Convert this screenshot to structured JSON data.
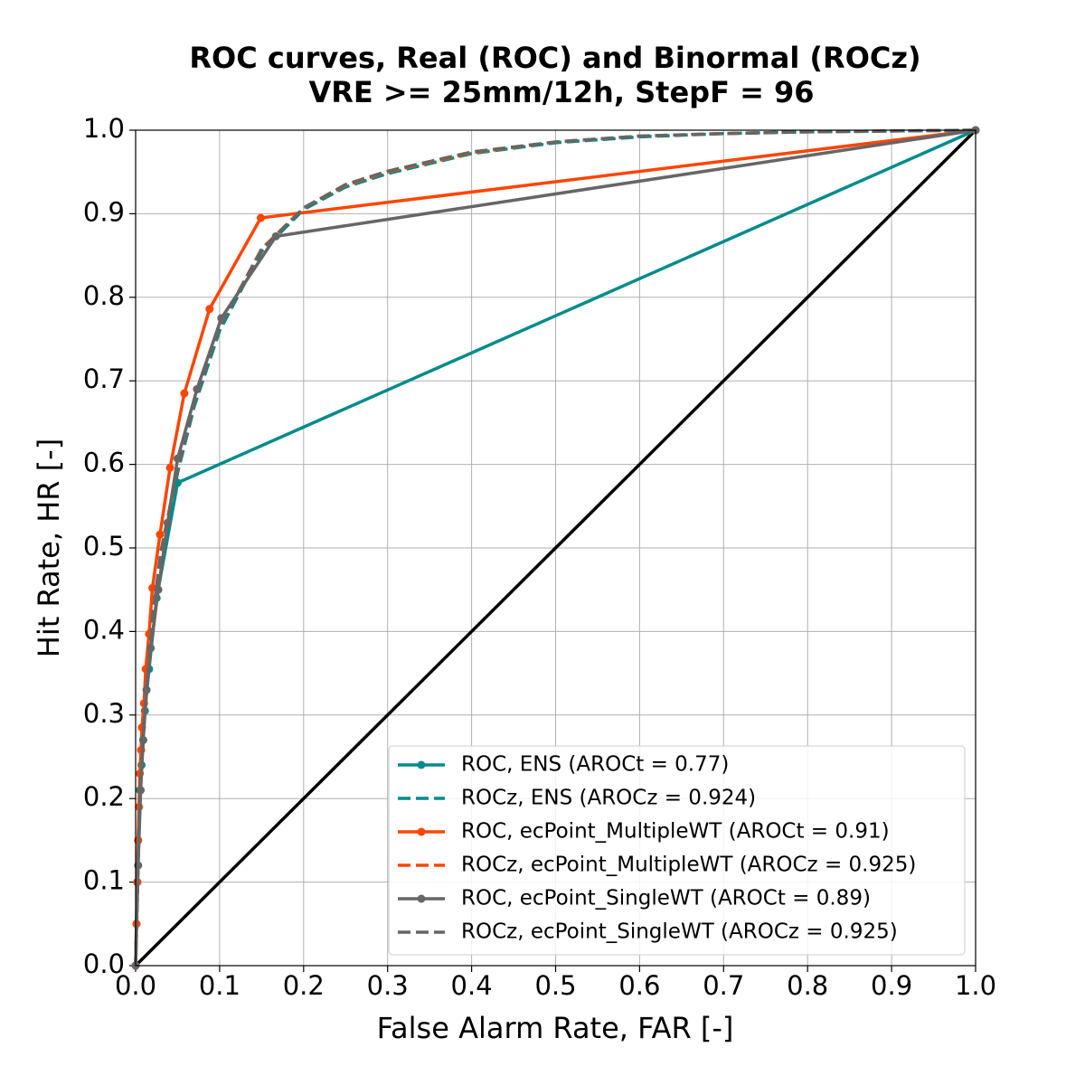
{
  "chart_data": {
    "type": "line",
    "title": "ROC curves, Real (ROC) and Binormal (ROCz)",
    "subtitle": "VRE >= 25mm/12h, StepF = 96",
    "x_label": "False Alarm Rate, FAR [-]",
    "y_label": "Hit Rate, HR [-]",
    "xlim": [
      0,
      1
    ],
    "ylim": [
      0,
      1
    ],
    "xticks": [
      {
        "value": 0,
        "label": "0.0"
      },
      0.1,
      0.2,
      0.3,
      0.4,
      0.5,
      0.6,
      0.7,
      0.8,
      0.9,
      {
        "value": 1,
        "label": "1.0"
      }
    ],
    "yticks": [
      {
        "value": 0,
        "label": "0.0"
      },
      0.1,
      0.2,
      0.3,
      0.4,
      0.5,
      0.6,
      0.7,
      0.8,
      0.9,
      {
        "value": 1,
        "label": "1.0"
      }
    ],
    "grid": true,
    "legend": "lower right",
    "series": [
      {
        "name": "ROC, ENS (AROCt = 0.77)",
        "color": "#008b8b",
        "linestyle": "solid",
        "marker": true,
        "x": [
          0,
          0.001,
          0.002,
          0.003,
          0.005,
          0.007,
          0.009,
          0.011,
          0.016,
          0.025,
          0.05,
          1
        ],
        "values": [
          0,
          0.05,
          0.1,
          0.15,
          0.21,
          0.24,
          0.27,
          0.305,
          0.355,
          0.44,
          0.578,
          1
        ]
      },
      {
        "name": "ROCz, ENS (AROCz = 0.924)",
        "color": "#008b8b",
        "linestyle": "dashed",
        "marker": false,
        "x": [
          0,
          0.005,
          0.01,
          0.02,
          0.03,
          0.05,
          0.07,
          0.1,
          0.15,
          0.2,
          0.25,
          0.3,
          0.4,
          0.5,
          0.6,
          0.7,
          0.8,
          0.9,
          1
        ],
        "values": [
          0,
          0.2,
          0.29,
          0.41,
          0.49,
          0.59,
          0.67,
          0.76,
          0.855,
          0.905,
          0.932,
          0.948,
          0.972,
          0.985,
          0.992,
          0.996,
          0.998,
          0.999,
          1
        ]
      },
      {
        "name": "ROC, ecPoint_MultipleWT (AROCt = 0.91)",
        "color": "#ff4500",
        "linestyle": "solid",
        "marker": true,
        "x": [
          0,
          0.001,
          0.002,
          0.003,
          0.004,
          0.005,
          0.0065,
          0.0075,
          0.01,
          0.012,
          0.016,
          0.02,
          0.029,
          0.041,
          0.058,
          0.088,
          0.149,
          1
        ],
        "values": [
          0,
          0.05,
          0.1,
          0.15,
          0.19,
          0.23,
          0.258,
          0.285,
          0.314,
          0.355,
          0.397,
          0.452,
          0.516,
          0.596,
          0.685,
          0.786,
          0.895,
          1
        ]
      },
      {
        "name": "ROCz, ecPoint_MultipleWT (AROCz = 0.925)",
        "color": "#ff4500",
        "linestyle": "dashed",
        "marker": false,
        "x": [
          0,
          0.005,
          0.01,
          0.02,
          0.03,
          0.05,
          0.07,
          0.1,
          0.15,
          0.2,
          0.25,
          0.3,
          0.4,
          0.5,
          0.6,
          0.7,
          0.8,
          0.9,
          1
        ],
        "values": [
          0,
          0.2,
          0.295,
          0.415,
          0.495,
          0.595,
          0.675,
          0.765,
          0.858,
          0.907,
          0.934,
          0.95,
          0.973,
          0.986,
          0.993,
          0.996,
          0.998,
          0.999,
          1
        ]
      },
      {
        "name": "ROC, ecPoint_SingleWT (AROCt = 0.89)",
        "color": "#666666",
        "linestyle": "solid",
        "marker": true,
        "x": [
          0,
          0.003,
          0.006,
          0.009,
          0.013,
          0.018,
          0.027,
          0.038,
          0.05,
          0.073,
          0.102,
          0.167,
          1
        ],
        "values": [
          0,
          0.12,
          0.21,
          0.27,
          0.33,
          0.38,
          0.45,
          0.53,
          0.607,
          0.69,
          0.775,
          0.873,
          1
        ]
      },
      {
        "name": "ROCz, ecPoint_SingleWT (AROCz = 0.925)",
        "color": "#666666",
        "linestyle": "dashed",
        "marker": false,
        "x": [
          0,
          0.005,
          0.01,
          0.02,
          0.03,
          0.05,
          0.07,
          0.1,
          0.15,
          0.2,
          0.25,
          0.3,
          0.4,
          0.5,
          0.6,
          0.7,
          0.8,
          0.9,
          1
        ],
        "values": [
          0,
          0.2,
          0.295,
          0.415,
          0.495,
          0.595,
          0.675,
          0.765,
          0.857,
          0.907,
          0.935,
          0.951,
          0.974,
          0.986,
          0.993,
          0.996,
          0.998,
          0.999,
          1
        ]
      }
    ]
  }
}
